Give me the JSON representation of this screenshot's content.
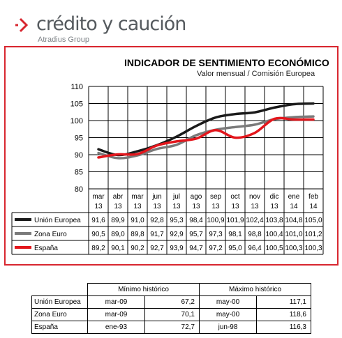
{
  "brand": {
    "name": "crédito y caución",
    "group": "Atradius Group",
    "colors": {
      "accent": "#d8262f",
      "text": "#555a5e"
    }
  },
  "chart_data": {
    "type": "line",
    "title": "INDICADOR DE SENTIMIENTO ECONÓMICO",
    "subtitle": "Valor mensual / Comisión Europea",
    "categories": [
      [
        "mar",
        "13"
      ],
      [
        "abr",
        "13"
      ],
      [
        "mar",
        "13"
      ],
      [
        "jun",
        "13"
      ],
      [
        "jul",
        "13"
      ],
      [
        "ago",
        "13"
      ],
      [
        "sep",
        "13"
      ],
      [
        "oct",
        "13"
      ],
      [
        "nov",
        "13"
      ],
      [
        "dic",
        "13"
      ],
      [
        "ene",
        "14"
      ],
      [
        "feb",
        "14"
      ]
    ],
    "ylim": [
      80,
      110
    ],
    "yticks": [
      "80",
      "85",
      "90",
      "95",
      "100",
      "105",
      "110"
    ],
    "grid": true,
    "legend": "table-below",
    "series": [
      {
        "name": "Unión Europea",
        "color": "#1a1a1a",
        "values": [
          91.6,
          89.9,
          91.0,
          92.8,
          95.3,
          98.4,
          100.9,
          101.9,
          102.4,
          103.8,
          104.8,
          105.0
        ],
        "labels": [
          "91,6",
          "89,9",
          "91,0",
          "92,8",
          "95,3",
          "98,4",
          "100,9",
          "101,9",
          "102,4",
          "103,8",
          "104,8",
          "105,0"
        ]
      },
      {
        "name": "Zona Euro",
        "color": "#7a7a7a",
        "values": [
          90.5,
          89.0,
          89.8,
          91.7,
          92.9,
          95.7,
          97.3,
          98.1,
          98.8,
          100.4,
          101.0,
          101.2
        ],
        "labels": [
          "90,5",
          "89,0",
          "89,8",
          "91,7",
          "92,9",
          "95,7",
          "97,3",
          "98,1",
          "98,8",
          "100,4",
          "101,0",
          "101,2"
        ]
      },
      {
        "name": "España",
        "color": "#e3161c",
        "values": [
          89.2,
          90.1,
          90.2,
          92.7,
          93.9,
          94.7,
          97.2,
          95.0,
          96.4,
          100.5,
          100.3,
          100.3
        ],
        "labels": [
          "89,2",
          "90,1",
          "90,2",
          "92,7",
          "93,9",
          "94,7",
          "97,2",
          "95,0",
          "96,4",
          "100,5",
          "100,3",
          "100,3"
        ]
      }
    ]
  },
  "historical": {
    "min_header": "Mínimo histórico",
    "max_header": "Máximo histórico",
    "rows": [
      {
        "name": "Unión Europea",
        "min_date": "mar-09",
        "min_value": "67,2",
        "max_date": "may-00",
        "max_value": "117,1"
      },
      {
        "name": "Zona Euro",
        "min_date": "mar-09",
        "min_value": "70,1",
        "max_date": "may-00",
        "max_value": "118,6"
      },
      {
        "name": "España",
        "min_date": "ene-93",
        "min_value": "72,7",
        "max_date": "jun-98",
        "max_value": "116,3"
      }
    ]
  }
}
